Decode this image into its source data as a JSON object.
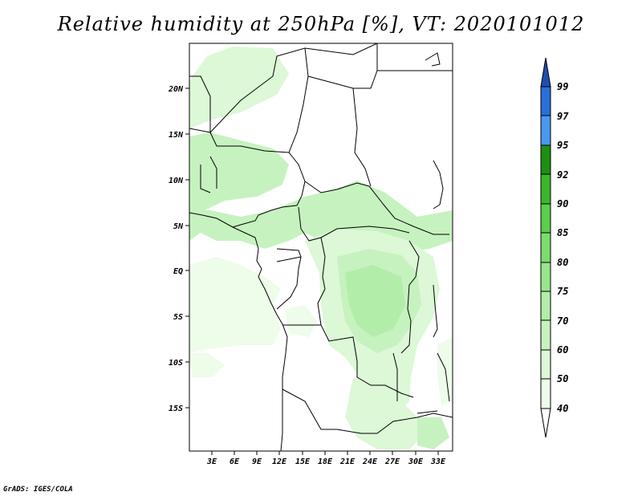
{
  "title": "Relative humidity at 250hPa [%], VT: 2020101012",
  "credit": "GrADS: IGES/COLA",
  "map": {
    "lat_ticks": [
      "20N",
      "15N",
      "10N",
      "5N",
      "EQ",
      "5S",
      "10S",
      "15S"
    ],
    "lon_ticks": [
      "3E",
      "6E",
      "9E",
      "12E",
      "15E",
      "18E",
      "21E",
      "24E",
      "27E",
      "30E",
      "33E"
    ]
  },
  "colorbar": {
    "levels": [
      "40",
      "50",
      "60",
      "70",
      "75",
      "80",
      "85",
      "90",
      "92",
      "95",
      "97",
      "99"
    ],
    "colors": {
      "below_40": "#ffffff",
      "40_50": "#eefcea",
      "50_60": "#dcf8d6",
      "60_70": "#c6f2bf",
      "70_75": "#b2edaa",
      "75_80": "#97e68d",
      "80_85": "#7ddb70",
      "85_90": "#5ccd4c",
      "90_92": "#3cb52e",
      "92_95": "#1e8f12",
      "95_97": "#4a98ee",
      "97_99": "#2a6fd8",
      "above_99": "#1c4fb0"
    }
  }
}
